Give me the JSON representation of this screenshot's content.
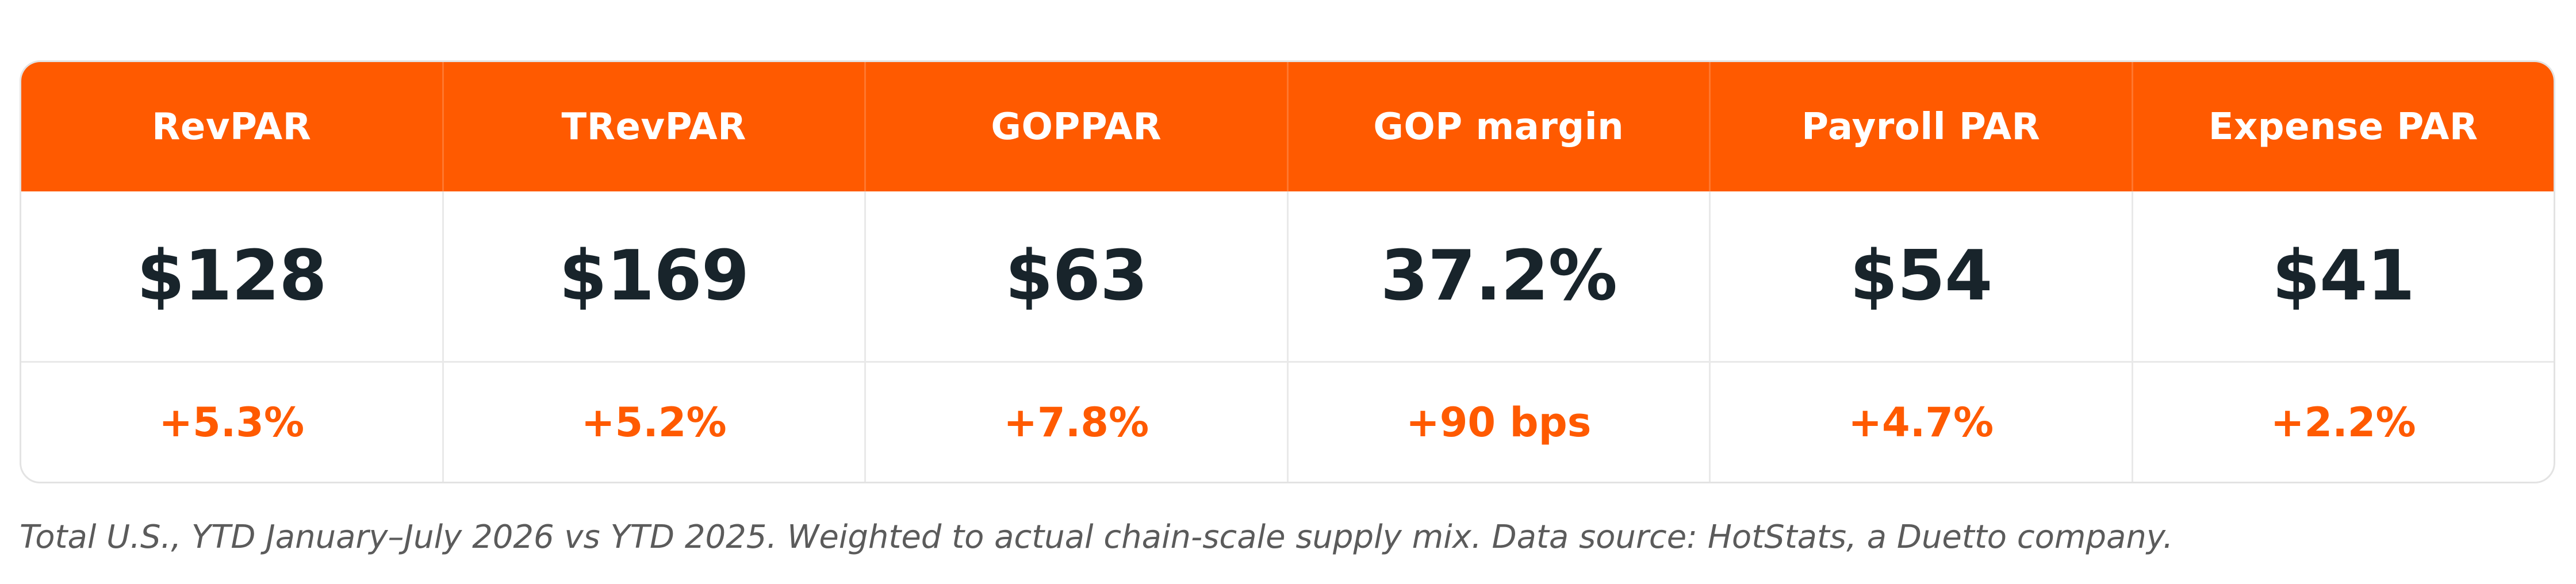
{
  "table": {
    "columns": [
      {
        "metric": "RevPAR",
        "value": "$128",
        "change": "+5.3%"
      },
      {
        "metric": "TRevPAR",
        "value": "$169",
        "change": "+5.2%"
      },
      {
        "metric": "GOPPAR",
        "value": "$63",
        "change": "+7.8%"
      },
      {
        "metric": "GOP margin",
        "value": "37.2%",
        "change": "+90 bps"
      },
      {
        "metric": "Payroll PAR",
        "value": "$54",
        "change": "+4.7%"
      },
      {
        "metric": "Expense PAR",
        "value": "$41",
        "change": "+2.2%"
      }
    ]
  },
  "footnote": "Total U.S., YTD January–July 2026 vs YTD 2025. Weighted to actual chain-scale supply mix. Data source: HotStats, a Duetto company.",
  "colors": {
    "accent": "#ff5a00",
    "value_text": "#18242b",
    "footnote_text": "#5b5b5b"
  }
}
